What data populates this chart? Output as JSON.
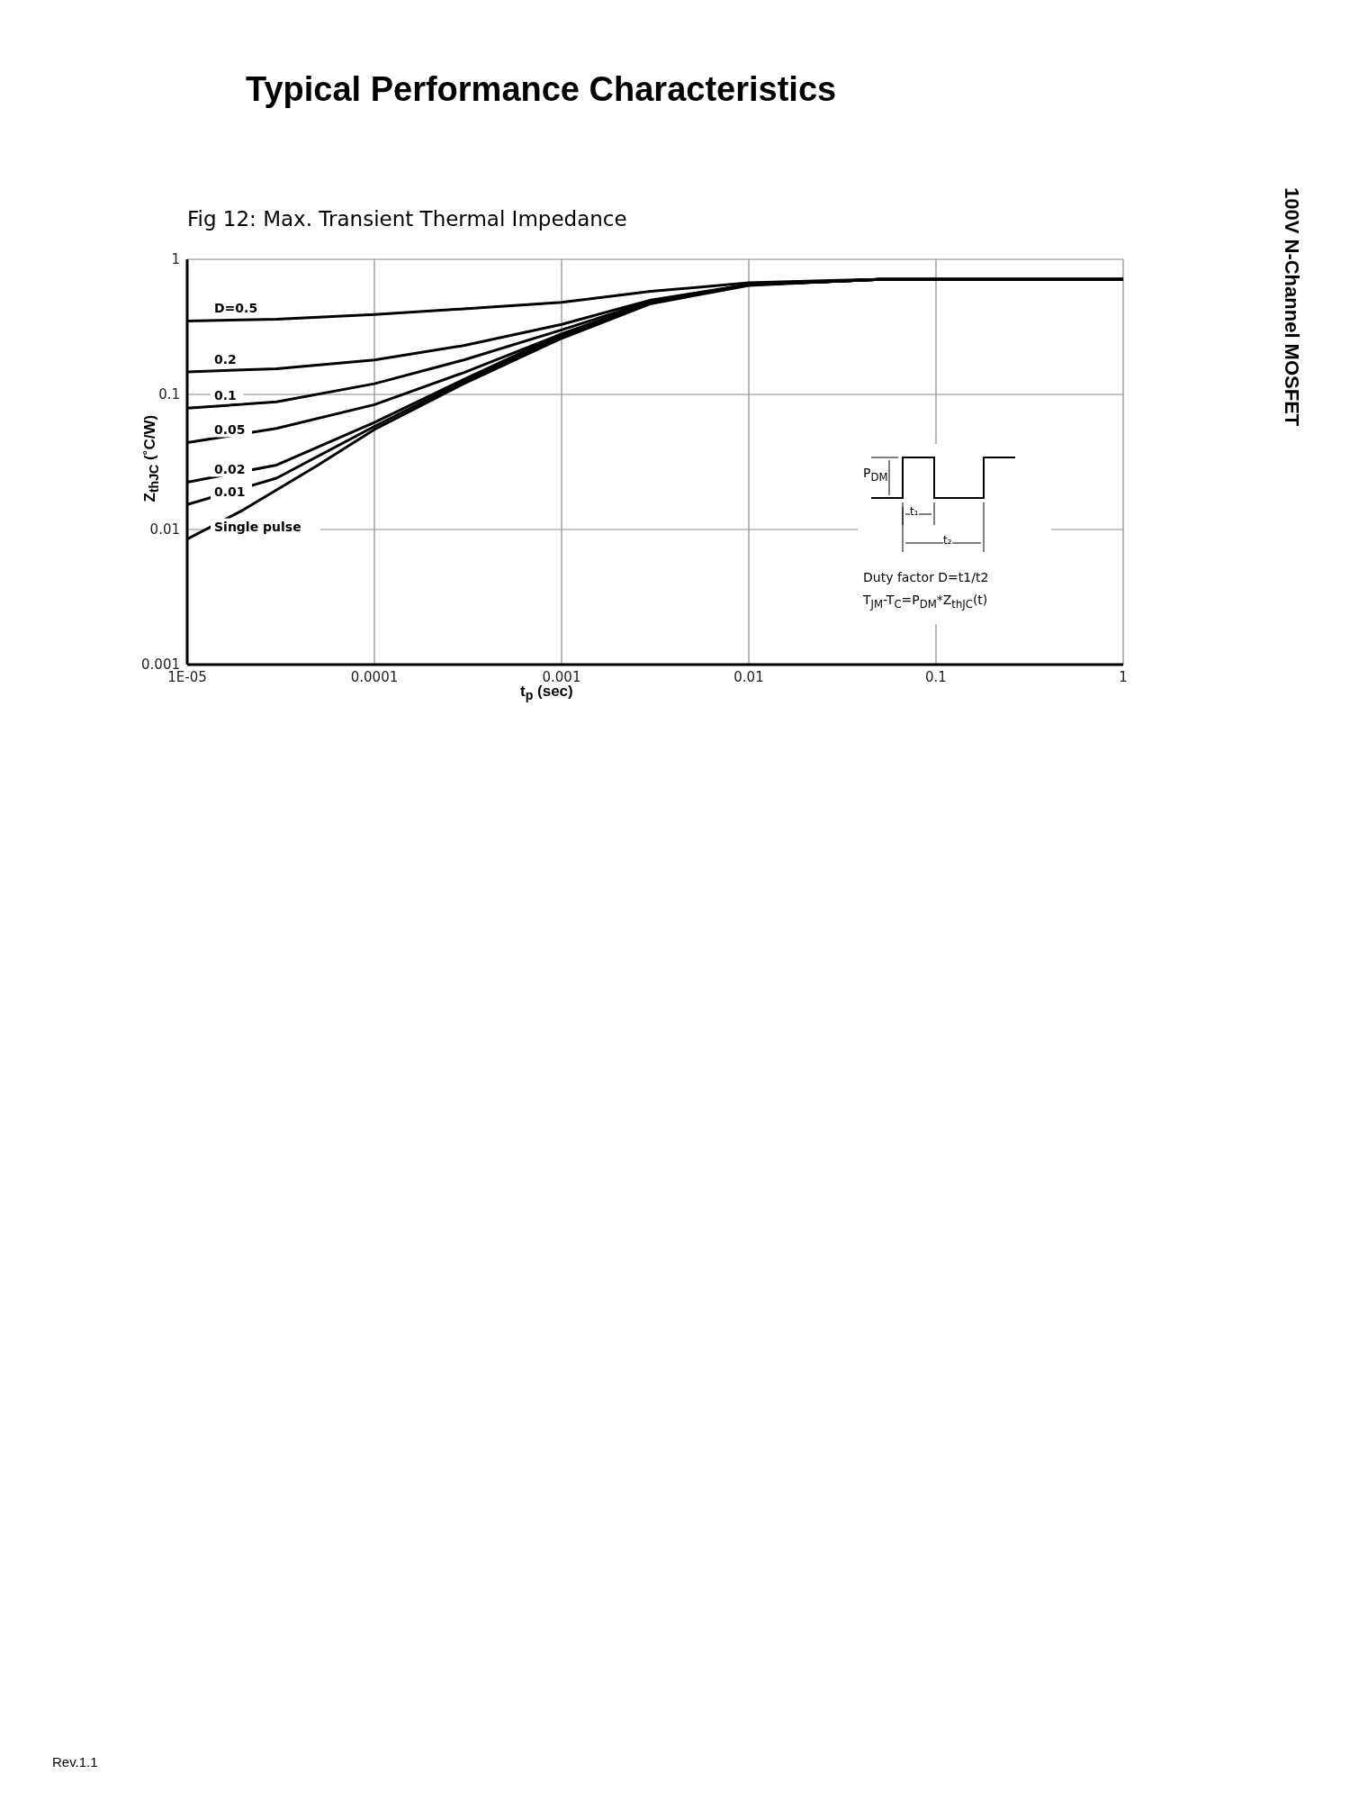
{
  "chart_data": {
    "type": "line",
    "title": "Typical Performance Characteristics",
    "subtitle": "Fig 12: Max. Transient Thermal Impedance",
    "xlabel": "t$_{p}$ (sec)",
    "ylabel": "Z$_{thJC}$ (˚C/W)",
    "annotations": [
      "P$_{DM}$",
      "t₁",
      "t₂",
      "Duty factor D=t1/t2",
      "T$_{JM}$-T$_{C}$=P$_{DM}$*Z$_{thJC}$(t)",
      "100V N-Channel MOSFET",
      "Rev.1.1"
    ],
    "series": [
      {
        "name": "D=0.5",
        "color": "#000000",
        "x": [
          1e-05,
          3e-05,
          0.0001,
          0.0003,
          0.001,
          0.003,
          0.01,
          0.03,
          0.05,
          0.1,
          1
        ],
        "values": [
          0.35,
          0.36,
          0.39,
          0.43,
          0.48,
          0.58,
          0.67,
          0.7,
          0.71,
          0.71,
          0.71
        ]
      },
      {
        "name": "0.2",
        "color": "#000000",
        "x": [
          1e-05,
          3e-05,
          0.0001,
          0.0003,
          0.001,
          0.003,
          0.01,
          0.03,
          0.05,
          0.1,
          1
        ],
        "values": [
          0.147,
          0.155,
          0.18,
          0.23,
          0.33,
          0.5,
          0.65,
          0.69,
          0.71,
          0.71,
          0.71
        ]
      },
      {
        "name": "0.1",
        "color": "#000000",
        "x": [
          1e-05,
          3e-05,
          0.0001,
          0.0003,
          0.001,
          0.003,
          0.01,
          0.03,
          0.05,
          0.1,
          1
        ],
        "values": [
          0.079,
          0.088,
          0.12,
          0.18,
          0.3,
          0.49,
          0.65,
          0.69,
          0.71,
          0.71,
          0.71
        ]
      },
      {
        "name": "0.05",
        "color": "#000000",
        "x": [
          1e-05,
          3e-05,
          0.0001,
          0.0003,
          0.001,
          0.003,
          0.01,
          0.03,
          0.05,
          0.1,
          1
        ],
        "values": [
          0.044,
          0.056,
          0.084,
          0.145,
          0.28,
          0.48,
          0.65,
          0.69,
          0.71,
          0.71,
          0.71
        ]
      },
      {
        "name": "0.02",
        "color": "#000000",
        "x": [
          1e-05,
          3e-05,
          0.0001,
          0.0003,
          0.001,
          0.003,
          0.01,
          0.03,
          0.05,
          0.1,
          1
        ],
        "values": [
          0.0224,
          0.03,
          0.062,
          0.129,
          0.28,
          0.48,
          0.65,
          0.69,
          0.71,
          0.71,
          0.71
        ]
      },
      {
        "name": "0.01",
        "color": "#000000",
        "x": [
          1e-05,
          3e-05,
          0.0001,
          0.0003,
          0.001,
          0.003,
          0.01,
          0.03,
          0.05,
          0.1,
          1
        ],
        "values": [
          0.0153,
          0.024,
          0.058,
          0.125,
          0.27,
          0.48,
          0.65,
          0.69,
          0.71,
          0.71,
          0.71
        ]
      },
      {
        "name": "Single pulse",
        "color": "#000000",
        "x": [
          1e-05,
          2e-05,
          5e-05,
          0.0001,
          0.0003,
          0.001,
          0.003,
          0.01,
          0.03,
          0.05,
          0.1,
          1
        ],
        "values": [
          0.0085,
          0.014,
          0.03,
          0.055,
          0.12,
          0.26,
          0.47,
          0.64,
          0.69,
          0.71,
          0.71,
          0.71
        ]
      }
    ],
    "xlim": [
      1e-05,
      1
    ],
    "xticks": [
      {
        "value": 1e-05,
        "label": "1E-05"
      },
      0.0001,
      0.001,
      0.01,
      0.1,
      1
    ],
    "ylim": [
      0.001,
      1
    ],
    "yticks": [
      0.001,
      0.01,
      0.1,
      1
    ],
    "log": "xy",
    "grid": true,
    "legend": false,
    "marker": "none",
    "line_style": "solid"
  }
}
